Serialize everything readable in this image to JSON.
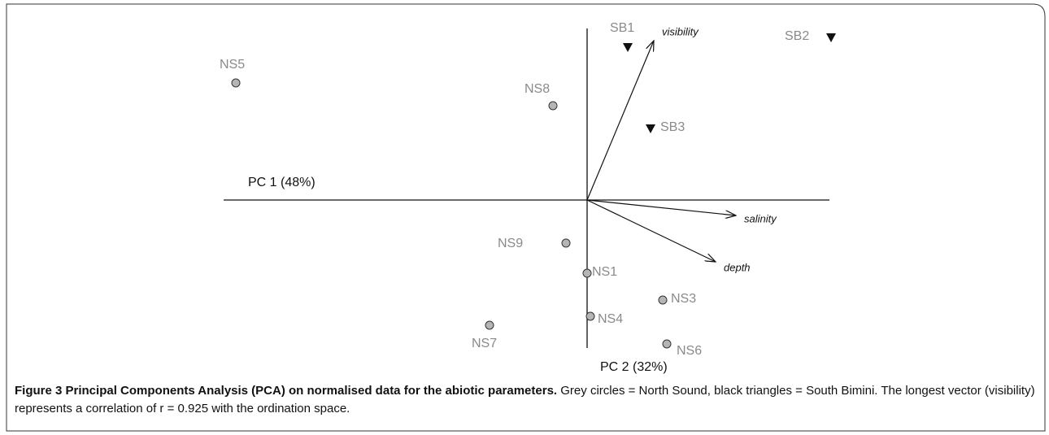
{
  "figure": {
    "axes": {
      "pc1": "PC 1 (48%)",
      "pc2": "PC 2 (32%)"
    },
    "points": {
      "north_sound": [
        "NS5",
        "NS8",
        "NS9",
        "NS1",
        "NS4",
        "NS7",
        "NS3",
        "NS6"
      ],
      "south_bimini": [
        "SB1",
        "SB2",
        "SB3"
      ]
    },
    "vectors": [
      "visibility",
      "salinity",
      "depth"
    ],
    "caption": {
      "label": "Figure 3 Principal Components Analysis (PCA) on normalised data for the abiotic parameters.",
      "text": "Grey circles = North Sound, black triangles = South Bimini. The longest vector (visibility) represents a correlation of r = 0.925 with the ordination space."
    }
  }
}
